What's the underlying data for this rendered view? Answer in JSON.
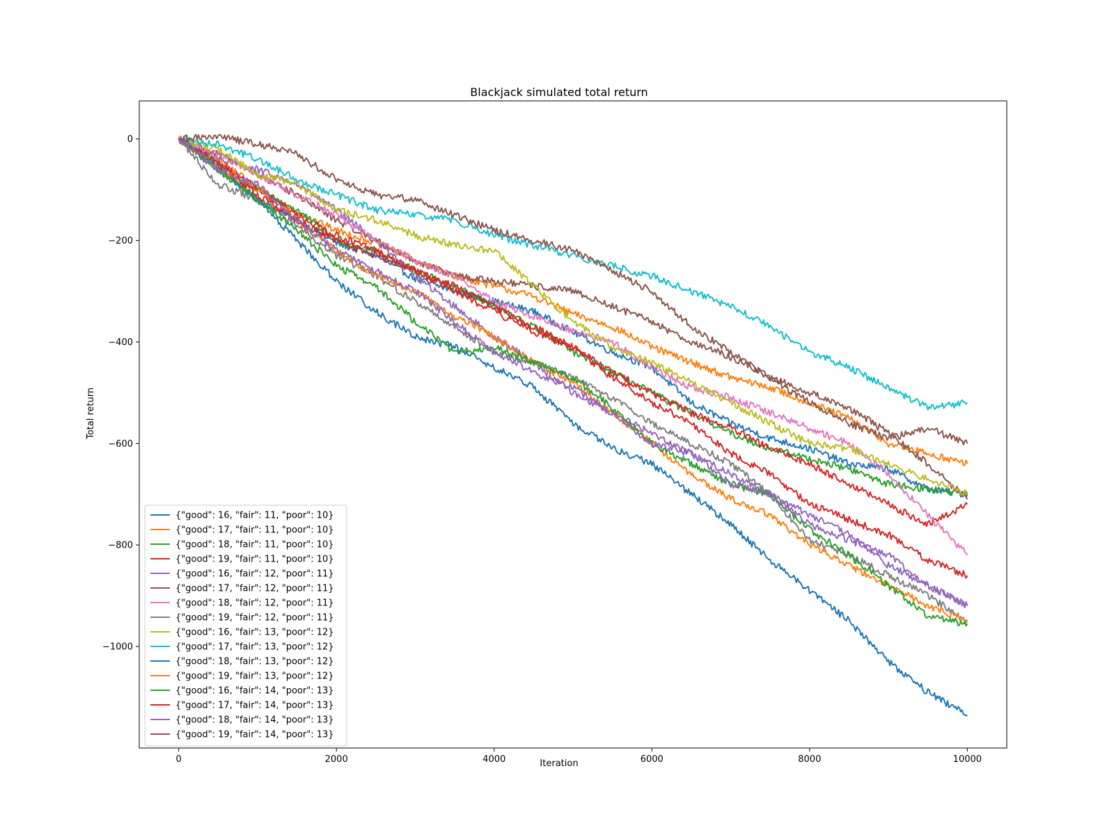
{
  "chart_data": {
    "type": "line",
    "title": "Blackjack simulated total return",
    "xlabel": "Iteration",
    "ylabel": "Total return",
    "xlim": [
      -500,
      10500
    ],
    "ylim": [
      -1200,
      75
    ],
    "xticks": [
      0,
      2000,
      4000,
      6000,
      8000,
      10000
    ],
    "xtick_labels": [
      "0",
      "2000",
      "4000",
      "6000",
      "8000",
      "10000"
    ],
    "yticks": [
      0,
      -200,
      -400,
      -600,
      -800,
      -1000
    ],
    "ytick_labels": [
      "0",
      "−200",
      "−400",
      "−600",
      "−800",
      "−1000"
    ],
    "grid": false,
    "legend_position": "lower-left",
    "series": [
      {
        "name": "{\"good\": 16, \"fair\": 11, \"poor\": 10}",
        "color": "#1f77b4",
        "x": [
          0,
          500,
          1000,
          1500,
          2000,
          2500,
          3000,
          3500,
          4000,
          4500,
          5000,
          5500,
          6000,
          6500,
          7000,
          7500,
          8000,
          8500,
          9000,
          9500,
          10000
        ],
        "y": [
          0,
          -55,
          -120,
          -160,
          -205,
          -230,
          -275,
          -300,
          -320,
          -340,
          -380,
          -420,
          -450,
          -520,
          -560,
          -590,
          -610,
          -640,
          -650,
          -690,
          -700
        ]
      },
      {
        "name": "{\"good\": 17, \"fair\": 11, \"poor\": 10}",
        "color": "#ff7f0e",
        "x": [
          0,
          500,
          1000,
          1500,
          2000,
          2500,
          3000,
          3500,
          4000,
          4500,
          5000,
          5500,
          6000,
          6500,
          7000,
          7500,
          8000,
          8500,
          9000,
          9500,
          10000
        ],
        "y": [
          0,
          -40,
          -95,
          -145,
          -180,
          -205,
          -240,
          -270,
          -290,
          -310,
          -345,
          -370,
          -410,
          -440,
          -470,
          -490,
          -520,
          -550,
          -600,
          -620,
          -640
        ]
      },
      {
        "name": "{\"good\": 18, \"fair\": 11, \"poor\": 10}",
        "color": "#2ca02c",
        "x": [
          0,
          500,
          1000,
          1500,
          2000,
          2500,
          3000,
          3500,
          4000,
          4500,
          5000,
          5500,
          6000,
          6500,
          7000,
          7500,
          8000,
          8500,
          9000,
          9500,
          10000
        ],
        "y": [
          0,
          -50,
          -100,
          -140,
          -200,
          -220,
          -260,
          -290,
          -330,
          -370,
          -420,
          -460,
          -500,
          -540,
          -580,
          -610,
          -630,
          -650,
          -680,
          -690,
          -700
        ]
      },
      {
        "name": "{\"good\": 19, \"fair\": 11, \"poor\": 10}",
        "color": "#d62728",
        "x": [
          0,
          500,
          1000,
          1500,
          2000,
          2500,
          3000,
          3500,
          4000,
          4500,
          5000,
          5500,
          6000,
          6500,
          7000,
          7500,
          8000,
          8500,
          9000,
          9500,
          10000
        ],
        "y": [
          0,
          -45,
          -100,
          -150,
          -190,
          -220,
          -260,
          -290,
          -330,
          -370,
          -410,
          -460,
          -500,
          -540,
          -570,
          -610,
          -640,
          -680,
          -720,
          -760,
          -720
        ]
      },
      {
        "name": "{\"good\": 16, \"fair\": 12, \"poor\": 11}",
        "color": "#9467bd",
        "x": [
          0,
          500,
          1000,
          1500,
          2000,
          2500,
          3000,
          3500,
          4000,
          4500,
          5000,
          5500,
          6000,
          6500,
          7000,
          7500,
          8000,
          8500,
          9000,
          9500,
          10000
        ],
        "y": [
          0,
          -40,
          -60,
          -90,
          -140,
          -200,
          -270,
          -330,
          -390,
          -440,
          -500,
          -540,
          -580,
          -620,
          -660,
          -700,
          -740,
          -780,
          -840,
          -880,
          -920
        ]
      },
      {
        "name": "{\"good\": 17, \"fair\": 12, \"poor\": 11}",
        "color": "#8c564b",
        "x": [
          0,
          500,
          1000,
          1500,
          2000,
          2500,
          3000,
          3500,
          4000,
          4500,
          5000,
          5500,
          6000,
          6500,
          7000,
          7500,
          8000,
          8500,
          9000,
          9500,
          10000
        ],
        "y": [
          0,
          -30,
          -70,
          -110,
          -160,
          -200,
          -240,
          -270,
          -280,
          -290,
          -300,
          -330,
          -360,
          -400,
          -430,
          -470,
          -500,
          -530,
          -580,
          -640,
          -710
        ]
      },
      {
        "name": "{\"good\": 18, \"fair\": 12, \"poor\": 11}",
        "color": "#e377c2",
        "x": [
          0,
          500,
          1000,
          1500,
          2000,
          2500,
          3000,
          3500,
          4000,
          4500,
          5000,
          5500,
          6000,
          6500,
          7000,
          7500,
          8000,
          8500,
          9000,
          9500,
          10000
        ],
        "y": [
          0,
          -30,
          -70,
          -110,
          -150,
          -200,
          -240,
          -270,
          -320,
          -350,
          -380,
          -400,
          -450,
          -490,
          -510,
          -540,
          -570,
          -600,
          -660,
          -740,
          -820
        ]
      },
      {
        "name": "{\"good\": 19, \"fair\": 12, \"poor\": 11}",
        "color": "#7f7f7f",
        "x": [
          0,
          500,
          1000,
          1500,
          2000,
          2500,
          3000,
          3500,
          4000,
          4500,
          5000,
          5500,
          6000,
          6500,
          7000,
          7500,
          8000,
          8500,
          9000,
          9500,
          10000
        ],
        "y": [
          0,
          -90,
          -120,
          -170,
          -230,
          -270,
          -320,
          -370,
          -420,
          -440,
          -470,
          -510,
          -560,
          -600,
          -640,
          -700,
          -790,
          -820,
          -860,
          -900,
          -950
        ]
      },
      {
        "name": "{\"good\": 16, \"fair\": 13, \"poor\": 12}",
        "color": "#bcbd22",
        "x": [
          0,
          500,
          1000,
          1500,
          2000,
          2500,
          3000,
          3500,
          4000,
          4500,
          5000,
          5500,
          6000,
          6500,
          7000,
          7500,
          8000,
          8500,
          9000,
          9500,
          10000
        ],
        "y": [
          0,
          -20,
          -70,
          -90,
          -140,
          -160,
          -190,
          -210,
          -220,
          -290,
          -360,
          -410,
          -440,
          -480,
          -520,
          -560,
          -600,
          -610,
          -640,
          -670,
          -700
        ]
      },
      {
        "name": "{\"good\": 17, \"fair\": 13, \"poor\": 12}",
        "color": "#17becf",
        "x": [
          0,
          500,
          1000,
          1500,
          2000,
          2500,
          3000,
          3500,
          4000,
          4500,
          5000,
          5500,
          6000,
          6500,
          7000,
          7500,
          8000,
          8500,
          9000,
          9500,
          10000
        ],
        "y": [
          0,
          -10,
          -40,
          -80,
          -110,
          -140,
          -150,
          -160,
          -190,
          -210,
          -230,
          -250,
          -270,
          -300,
          -330,
          -370,
          -420,
          -450,
          -490,
          -530,
          -520
        ]
      },
      {
        "name": "{\"good\": 18, \"fair\": 13, \"poor\": 12}",
        "color": "#1f77b4",
        "x": [
          0,
          500,
          1000,
          1500,
          2000,
          2500,
          3000,
          3500,
          4000,
          4500,
          5000,
          5500,
          6000,
          6500,
          7000,
          7500,
          8000,
          8500,
          9000,
          9500,
          10000
        ],
        "y": [
          0,
          -60,
          -120,
          -200,
          -280,
          -340,
          -390,
          -410,
          -450,
          -490,
          -560,
          -610,
          -640,
          -700,
          -760,
          -830,
          -890,
          -950,
          -1030,
          -1090,
          -1135
        ]
      },
      {
        "name": "{\"good\": 19, \"fair\": 13, \"poor\": 12}",
        "color": "#ff7f0e",
        "x": [
          0,
          500,
          1000,
          1500,
          2000,
          2500,
          3000,
          3500,
          4000,
          4500,
          5000,
          5500,
          6000,
          6500,
          7000,
          7500,
          8000,
          8500,
          9000,
          9500,
          10000
        ],
        "y": [
          0,
          -60,
          -100,
          -160,
          -220,
          -270,
          -300,
          -350,
          -390,
          -440,
          -480,
          -540,
          -600,
          -660,
          -710,
          -740,
          -800,
          -840,
          -880,
          -920,
          -950
        ]
      },
      {
        "name": "{\"good\": 16, \"fair\": 14, \"poor\": 13}",
        "color": "#2ca02c",
        "x": [
          0,
          500,
          1000,
          1500,
          2000,
          2500,
          3000,
          3500,
          4000,
          4500,
          5000,
          5500,
          6000,
          6500,
          7000,
          7500,
          8000,
          8500,
          9000,
          9500,
          10000
        ],
        "y": [
          0,
          -60,
          -120,
          -180,
          -250,
          -290,
          -360,
          -420,
          -410,
          -440,
          -470,
          -530,
          -600,
          -640,
          -680,
          -700,
          -770,
          -820,
          -880,
          -940,
          -955
        ]
      },
      {
        "name": "{\"good\": 17, \"fair\": 14, \"poor\": 13}",
        "color": "#d62728",
        "x": [
          0,
          500,
          1000,
          1500,
          2000,
          2500,
          3000,
          3500,
          4000,
          4500,
          5000,
          5500,
          6000,
          6500,
          7000,
          7500,
          8000,
          8500,
          9000,
          9500,
          10000
        ],
        "y": [
          0,
          -50,
          -110,
          -160,
          -200,
          -230,
          -260,
          -300,
          -340,
          -380,
          -410,
          -470,
          -520,
          -560,
          -620,
          -660,
          -720,
          -750,
          -780,
          -830,
          -860
        ]
      },
      {
        "name": "{\"good\": 18, \"fair\": 14, \"poor\": 13}",
        "color": "#9467bd",
        "x": [
          0,
          500,
          1000,
          1500,
          2000,
          2500,
          3000,
          3500,
          4000,
          4500,
          5000,
          5500,
          6000,
          6500,
          7000,
          7500,
          8000,
          8500,
          9000,
          9500,
          10000
        ],
        "y": [
          0,
          -60,
          -90,
          -160,
          -220,
          -260,
          -300,
          -360,
          -420,
          -460,
          -490,
          -540,
          -600,
          -620,
          -680,
          -700,
          -760,
          -790,
          -820,
          -880,
          -920
        ]
      },
      {
        "name": "{\"good\": 19, \"fair\": 14, \"poor\": 13}",
        "color": "#8c564b",
        "x": [
          0,
          500,
          1000,
          1500,
          2000,
          2500,
          3000,
          3500,
          4000,
          4500,
          5000,
          5500,
          6000,
          6500,
          7000,
          7500,
          8000,
          8500,
          9000,
          9500,
          10000
        ],
        "y": [
          0,
          5,
          -10,
          -30,
          -80,
          -110,
          -120,
          -150,
          -180,
          -200,
          -220,
          -260,
          -300,
          -370,
          -420,
          -470,
          -520,
          -560,
          -590,
          -570,
          -600
        ]
      }
    ]
  }
}
